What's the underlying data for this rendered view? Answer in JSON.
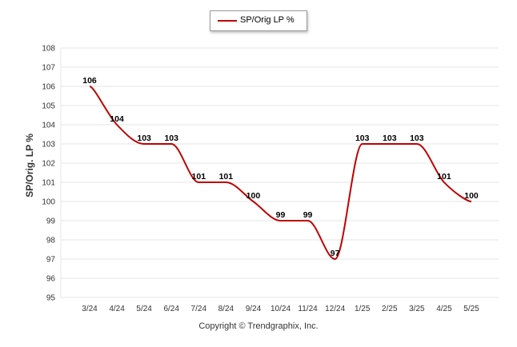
{
  "chart_data": {
    "type": "line",
    "title": "",
    "xlabel": "",
    "ylabel": "SP/Orig. LP %",
    "ylim": [
      95,
      108
    ],
    "yticks": [
      95,
      96,
      97,
      98,
      99,
      100,
      101,
      102,
      103,
      104,
      105,
      106,
      107,
      108
    ],
    "grid": true,
    "legend_position": "top-center",
    "categories": [
      "3/24",
      "4/24",
      "5/24",
      "6/24",
      "7/24",
      "8/24",
      "9/24",
      "10/24",
      "11/24",
      "12/24",
      "1/25",
      "2/25",
      "3/25",
      "4/25",
      "5/25"
    ],
    "series": [
      {
        "name": "SP/Orig LP %",
        "color": "#c00000",
        "values": [
          106,
          104,
          103,
          103,
          101,
          101,
          100,
          99,
          99,
          97,
          103,
          103,
          103,
          101,
          100
        ],
        "labels": [
          "106",
          "104",
          "103",
          "103",
          "101",
          "101",
          "100",
          "99",
          "99",
          "97",
          "103",
          "103",
          "103",
          "101",
          "100"
        ]
      }
    ]
  },
  "copyright": "Copyright © Trendgraphix, Inc."
}
